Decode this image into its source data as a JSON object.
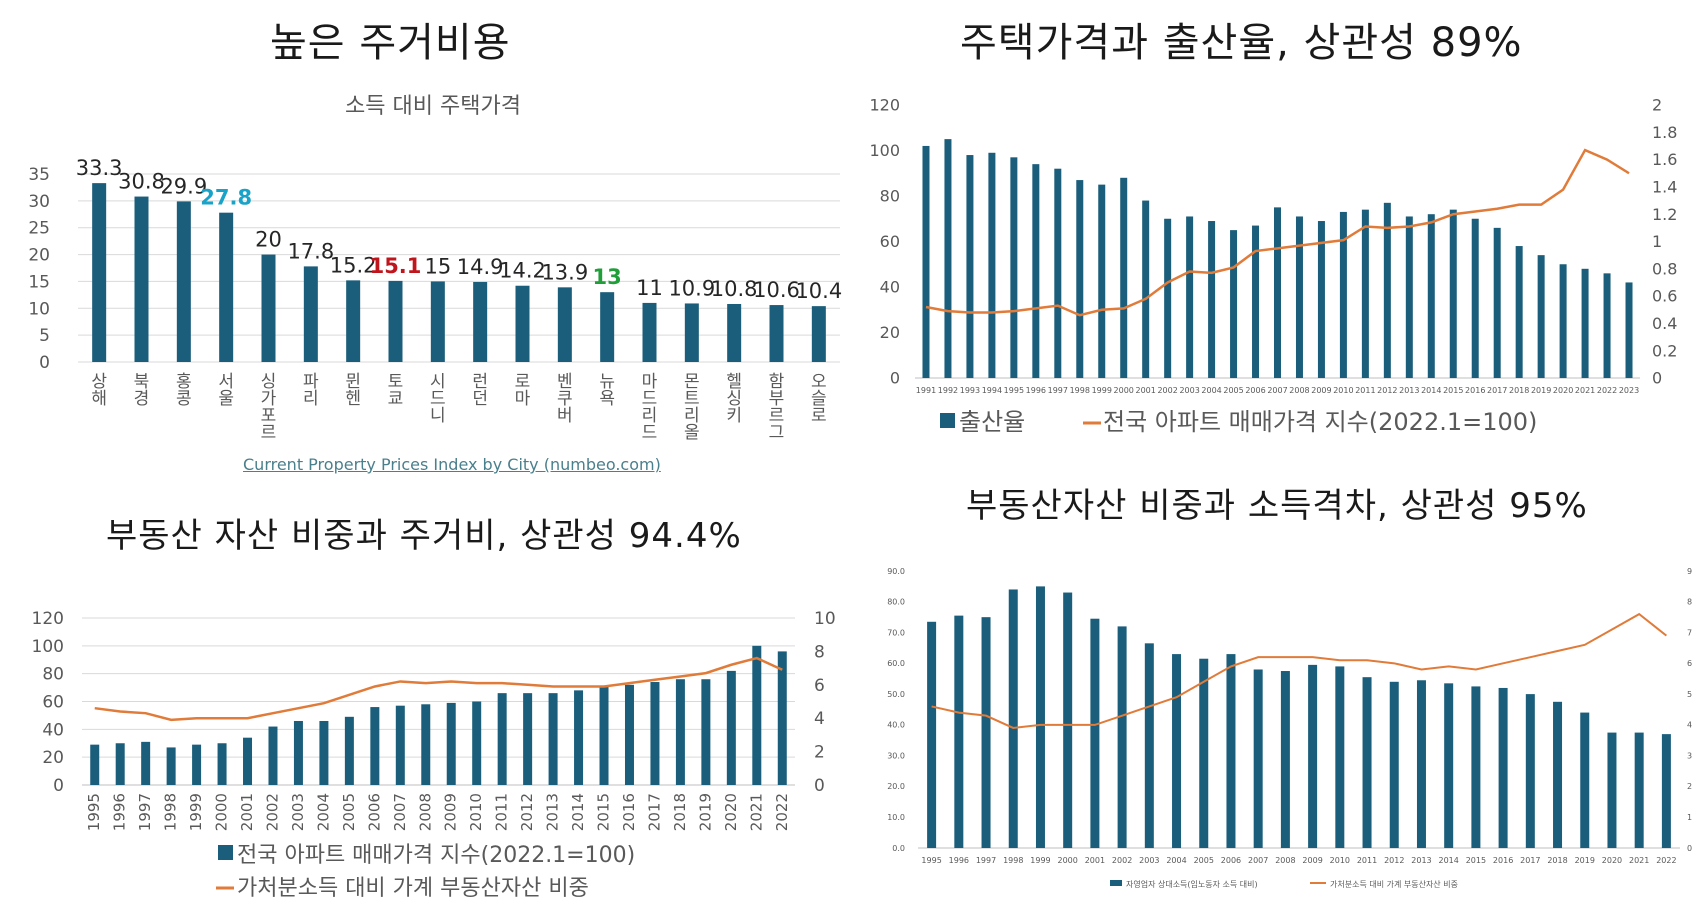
{
  "titles": {
    "tl": "높은 주거비용",
    "tr": "주택가격과 출산율, 상관성 89%",
    "bl": "부동산 자산 비중과 주거비, 상관성 94.4%",
    "br": "부동산자산 비중과 소득격차, 상관성 95%"
  },
  "source_link": "Current Property Prices Index by City (numbeo.com)",
  "colors": {
    "bar": "#1b5e7b",
    "line": "#e07b39",
    "grid": "#d9d9d9",
    "blue_label": "#1aa3c8",
    "red_label": "#c0151d",
    "green_label": "#1f9e3a"
  },
  "chart_data": [
    {
      "id": "tl",
      "type": "bar",
      "title": "소득 대비 주택가격",
      "categories": [
        "상해",
        "북경",
        "홍콩",
        "서울",
        "싱가포르",
        "파리",
        "뮌헨",
        "토쿄",
        "시드니",
        "런던",
        "로마",
        "벤쿠버",
        "뉴욕",
        "마드리드",
        "몬트리올",
        "헬싱키",
        "함부르그",
        "오슬로"
      ],
      "values": [
        33.3,
        30.8,
        29.9,
        27.8,
        20,
        17.8,
        15.2,
        15.1,
        15,
        14.9,
        14.2,
        13.9,
        13,
        11,
        10.9,
        10.8,
        10.6,
        10.4
      ],
      "labels": [
        "33.3",
        "30.8",
        "29.9",
        "27.8",
        "20",
        "17.8",
        "15.2",
        "15.1",
        "15",
        "14.9",
        "14.2",
        "13.9",
        "13",
        "11",
        "10.9",
        "10.8",
        "10.6",
        "10.4"
      ],
      "highlight_colors": {
        "3": "#1aa3c8",
        "7": "#c0151d",
        "12": "#1f9e3a"
      },
      "yticks": [
        "0",
        "5",
        "10",
        "15",
        "20",
        "25",
        "30",
        "35"
      ],
      "ylim": [
        0,
        35
      ],
      "grid": true
    },
    {
      "id": "tr",
      "type": "bar+line",
      "categories": [
        "1991",
        "1992",
        "1993",
        "1994",
        "1995",
        "1996",
        "1997",
        "1998",
        "1999",
        "2000",
        "2001",
        "2002",
        "2003",
        "2004",
        "2005",
        "2006",
        "2007",
        "2008",
        "2009",
        "2010",
        "2011",
        "2012",
        "2013",
        "2014",
        "2015",
        "2016",
        "2017",
        "2018",
        "2019",
        "2020",
        "2021",
        "2022",
        "2023"
      ],
      "series": [
        {
          "name": "출산율",
          "kind": "bar",
          "axis": "left",
          "values": [
            102,
            105,
            98,
            99,
            97,
            94,
            92,
            87,
            85,
            88,
            78,
            70,
            71,
            69,
            65,
            67,
            75,
            71,
            69,
            73,
            74,
            77,
            71,
            72,
            74,
            70,
            66,
            58,
            54,
            50,
            48,
            46,
            42
          ]
        },
        {
          "name": "전국 아파트 매매가격 지수(2022.1=100)",
          "kind": "line",
          "axis": "right",
          "values": [
            0.52,
            0.49,
            0.48,
            0.48,
            0.49,
            0.51,
            0.53,
            0.46,
            0.5,
            0.51,
            0.58,
            0.7,
            0.78,
            0.77,
            0.81,
            0.93,
            0.95,
            0.97,
            0.99,
            1.01,
            1.11,
            1.1,
            1.11,
            1.14,
            1.2,
            1.22,
            1.24,
            1.27,
            1.27,
            1.38,
            1.67,
            1.6,
            1.5
          ]
        }
      ],
      "yticks_left": [
        "0",
        "20",
        "40",
        "60",
        "80",
        "100",
        "120"
      ],
      "yticks_right": [
        "0",
        "0.2",
        "0.4",
        "0.6",
        "0.8",
        "1",
        "1.2",
        "1.4",
        "1.6",
        "1.8",
        "2"
      ],
      "ylim_left": [
        0,
        120
      ],
      "ylim_right": [
        0,
        2
      ],
      "legend": [
        "출산율",
        "전국 아파트 매매가격 지수(2022.1=100)"
      ],
      "legend_position": "bottom"
    },
    {
      "id": "bl",
      "type": "bar+line",
      "categories": [
        "1995",
        "1996",
        "1997",
        "1998",
        "1999",
        "2000",
        "2001",
        "2002",
        "2003",
        "2004",
        "2005",
        "2006",
        "2007",
        "2008",
        "2009",
        "2010",
        "2011",
        "2012",
        "2013",
        "2014",
        "2015",
        "2016",
        "2017",
        "2018",
        "2019",
        "2020",
        "2021",
        "2022"
      ],
      "series": [
        {
          "name": "전국 아파트 매매가격 지수(2022.1=100)",
          "kind": "bar",
          "axis": "left",
          "values": [
            29,
            30,
            31,
            27,
            29,
            30,
            34,
            42,
            46,
            46,
            49,
            56,
            57,
            58,
            59,
            60,
            66,
            66,
            66,
            68,
            71,
            72,
            74,
            76,
            76,
            82,
            100,
            96
          ]
        },
        {
          "name": "가처분소득 대비 가계 부동산자산 비중",
          "kind": "line",
          "axis": "right",
          "values": [
            4.6,
            4.4,
            4.3,
            3.9,
            4.0,
            4.0,
            4.0,
            4.3,
            4.6,
            4.9,
            5.4,
            5.9,
            6.2,
            6.1,
            6.2,
            6.1,
            6.1,
            6.0,
            5.9,
            5.9,
            5.9,
            6.1,
            6.3,
            6.5,
            6.7,
            7.2,
            7.6,
            6.9
          ]
        }
      ],
      "yticks_left": [
        "0",
        "20",
        "40",
        "60",
        "80",
        "100",
        "120"
      ],
      "yticks_right": [
        "0",
        "2",
        "4",
        "6",
        "8",
        "10"
      ],
      "ylim_left": [
        0,
        120
      ],
      "ylim_right": [
        0,
        10
      ],
      "legend": [
        "전국 아파트 매매가격 지수(2022.1=100)",
        "가처분소득 대비 가계 부동산자산 비중"
      ],
      "legend_position": "bottom"
    },
    {
      "id": "br",
      "type": "bar+line",
      "categories": [
        "1995",
        "1996",
        "1997",
        "1998",
        "1999",
        "2000",
        "2001",
        "2002",
        "2003",
        "2004",
        "2005",
        "2006",
        "2007",
        "2008",
        "2009",
        "2010",
        "2011",
        "2012",
        "2013",
        "2014",
        "2015",
        "2016",
        "2017",
        "2018",
        "2019",
        "2020",
        "2021",
        "2022"
      ],
      "series": [
        {
          "name": "자영업자 상대소득(임노동자 소득 대비)",
          "kind": "bar",
          "axis": "left",
          "values": [
            73.5,
            75.5,
            75,
            84,
            85,
            83,
            74.5,
            72,
            66.5,
            63,
            61.5,
            63,
            58,
            57.5,
            59.5,
            59,
            55.5,
            54,
            54.5,
            53.5,
            52.5,
            52,
            50,
            47.5,
            44,
            37.5,
            37.5,
            37
          ]
        },
        {
          "name": "가처분소득 대비 가계 부동산자산 비중",
          "kind": "line",
          "axis": "right",
          "values": [
            4.6,
            4.4,
            4.3,
            3.9,
            4.0,
            4.0,
            4.0,
            4.3,
            4.6,
            4.9,
            5.4,
            5.9,
            6.2,
            6.2,
            6.2,
            6.1,
            6.1,
            6.0,
            5.8,
            5.9,
            5.8,
            6.0,
            6.2,
            6.4,
            6.6,
            7.1,
            7.6,
            6.9
          ]
        }
      ],
      "yticks_left": [
        "0.0",
        "10.0",
        "20.0",
        "30.0",
        "40.0",
        "50.0",
        "60.0",
        "70.0",
        "80.0",
        "90.0"
      ],
      "yticks_right": [
        "0",
        "1",
        "2",
        "3",
        "4",
        "5",
        "6",
        "7",
        "8",
        "9"
      ],
      "ylim_left": [
        0,
        90
      ],
      "ylim_right": [
        0,
        9
      ],
      "legend": [
        "자영업자 상대소득(임노동자 소득 대비)",
        "가처분소득 대비 가계 부동산자산 비중"
      ],
      "legend_position": "bottom"
    }
  ]
}
